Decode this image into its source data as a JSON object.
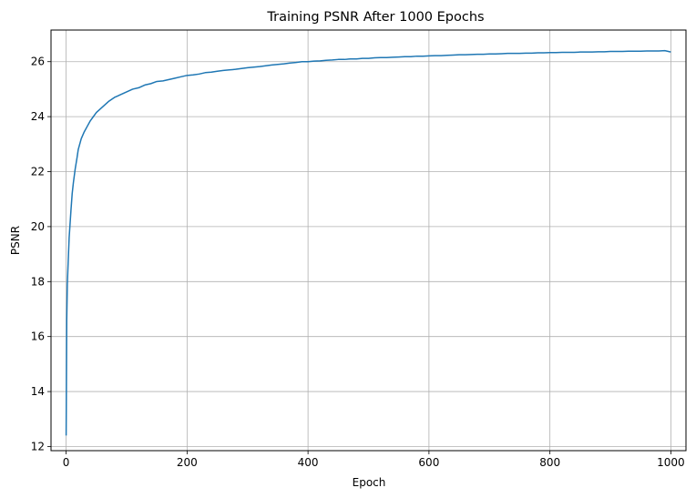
{
  "chart_data": {
    "type": "line",
    "title": "Training PSNR After 1000 Epochs",
    "xlabel": "Epoch",
    "ylabel": "PSNR",
    "xlim": [
      -25,
      1025
    ],
    "ylim": [
      11.85,
      27.15
    ],
    "xticks": [
      0,
      200,
      400,
      600,
      800,
      1000
    ],
    "yticks": [
      12,
      14,
      16,
      18,
      20,
      22,
      24,
      26
    ],
    "grid": true,
    "legend": "none",
    "series": [
      {
        "color": "#1f77b4",
        "x": [
          0,
          1,
          2,
          3,
          5,
          8,
          10,
          12,
          15,
          18,
          20,
          25,
          30,
          35,
          40,
          45,
          50,
          60,
          70,
          80,
          90,
          100,
          110,
          120,
          130,
          140,
          150,
          160,
          170,
          180,
          190,
          200,
          210,
          220,
          230,
          240,
          250,
          260,
          270,
          280,
          290,
          300,
          310,
          320,
          330,
          340,
          350,
          360,
          370,
          380,
          390,
          400,
          410,
          420,
          430,
          440,
          450,
          460,
          470,
          480,
          490,
          500,
          510,
          520,
          530,
          540,
          550,
          560,
          570,
          580,
          590,
          600,
          610,
          620,
          630,
          640,
          650,
          660,
          670,
          680,
          690,
          700,
          710,
          720,
          730,
          740,
          750,
          760,
          770,
          780,
          790,
          800,
          810,
          820,
          830,
          840,
          850,
          860,
          870,
          880,
          890,
          900,
          910,
          920,
          930,
          940,
          950,
          960,
          970,
          980,
          990,
          1000
        ],
        "y": [
          12.4,
          16.6,
          17.9,
          18.5,
          19.6,
          20.6,
          21.2,
          21.6,
          22.1,
          22.5,
          22.8,
          23.2,
          23.45,
          23.65,
          23.85,
          24.0,
          24.15,
          24.35,
          24.55,
          24.7,
          24.8,
          24.9,
          25.0,
          25.05,
          25.15,
          25.2,
          25.28,
          25.3,
          25.35,
          25.4,
          25.45,
          25.5,
          25.52,
          25.55,
          25.6,
          25.62,
          25.65,
          25.68,
          25.7,
          25.72,
          25.75,
          25.78,
          25.8,
          25.82,
          25.85,
          25.88,
          25.9,
          25.92,
          25.95,
          25.97,
          26.0,
          26.0,
          26.02,
          26.03,
          26.05,
          26.06,
          26.08,
          26.08,
          26.1,
          26.1,
          26.12,
          26.12,
          26.14,
          26.15,
          26.15,
          26.16,
          26.17,
          26.18,
          26.18,
          26.2,
          26.2,
          26.21,
          26.22,
          26.22,
          26.23,
          26.24,
          26.25,
          26.25,
          26.26,
          26.27,
          26.27,
          26.28,
          26.28,
          26.29,
          26.3,
          26.3,
          26.3,
          26.31,
          26.31,
          26.32,
          26.32,
          26.33,
          26.33,
          26.34,
          26.34,
          26.34,
          26.35,
          26.35,
          26.35,
          26.36,
          26.36,
          26.37,
          26.37,
          26.37,
          26.38,
          26.38,
          26.38,
          26.39,
          26.39,
          26.39,
          26.4,
          26.35
        ]
      }
    ]
  }
}
